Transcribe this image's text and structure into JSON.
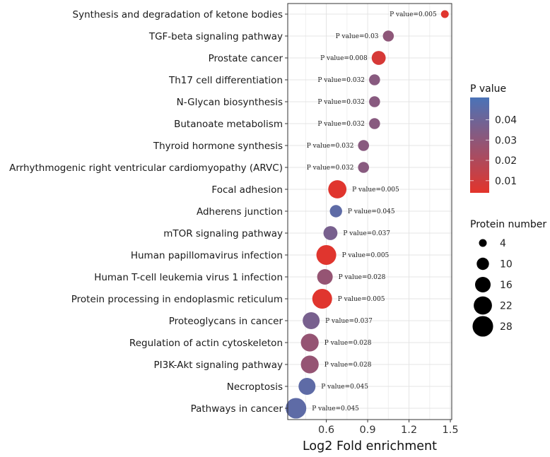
{
  "chart_data": {
    "type": "scatter",
    "title": "",
    "xlabel": "Log2 Fold enrichment",
    "ylabel": "",
    "xlim": [
      0.32,
      1.51
    ],
    "xticks": [
      0.6,
      0.9,
      1.2,
      1.5
    ],
    "xtick_labels": [
      "0.6",
      "0.9",
      "1.2",
      "1.5"
    ],
    "grid": true,
    "points": [
      {
        "pathway": "Synthesis and degradation of ketone bodies",
        "x": 1.46,
        "p": 0.005,
        "p_label": "P value=0.005",
        "proteins": 4
      },
      {
        "pathway": "TGF-beta signaling pathway",
        "x": 1.05,
        "p": 0.03,
        "p_label": "P value=0.03",
        "proteins": 8
      },
      {
        "pathway": "Prostate cancer",
        "x": 0.98,
        "p": 0.008,
        "p_label": "P value=0.008",
        "proteins": 13
      },
      {
        "pathway": "Th17 cell differentiation",
        "x": 0.95,
        "p": 0.032,
        "p_label": "P value=0.032",
        "proteins": 8
      },
      {
        "pathway": "N-Glycan biosynthesis",
        "x": 0.95,
        "p": 0.032,
        "p_label": "P value=0.032",
        "proteins": 8
      },
      {
        "pathway": "Butanoate metabolism",
        "x": 0.95,
        "p": 0.032,
        "p_label": "P value=0.032",
        "proteins": 8
      },
      {
        "pathway": "Thyroid hormone synthesis",
        "x": 0.87,
        "p": 0.032,
        "p_label": "P value=0.032",
        "proteins": 8
      },
      {
        "pathway": "Arrhythmogenic right ventricular cardiomyopathy (ARVC)",
        "x": 0.87,
        "p": 0.032,
        "p_label": "P value=0.032",
        "proteins": 8
      },
      {
        "pathway": "Focal adhesion",
        "x": 0.68,
        "p": 0.005,
        "p_label": "P value=0.005",
        "proteins": 22
      },
      {
        "pathway": "Adherens junction",
        "x": 0.67,
        "p": 0.045,
        "p_label": "P value=0.045",
        "proteins": 10
      },
      {
        "pathway": "mTOR signaling pathway",
        "x": 0.63,
        "p": 0.037,
        "p_label": "P value=0.037",
        "proteins": 13
      },
      {
        "pathway": "Human papillomavirus infection",
        "x": 0.6,
        "p": 0.005,
        "p_label": "P value=0.005",
        "proteins": 26
      },
      {
        "pathway": "Human T-cell leukemia virus 1 infection",
        "x": 0.59,
        "p": 0.028,
        "p_label": "P value=0.028",
        "proteins": 16
      },
      {
        "pathway": "Protein processing in endoplasmic reticulum",
        "x": 0.57,
        "p": 0.005,
        "p_label": "P value=0.005",
        "proteins": 26
      },
      {
        "pathway": "Proteoglycans in cancer",
        "x": 0.49,
        "p": 0.037,
        "p_label": "P value=0.037",
        "proteins": 19
      },
      {
        "pathway": "Regulation of actin cytoskeleton",
        "x": 0.48,
        "p": 0.028,
        "p_label": "P value=0.028",
        "proteins": 21
      },
      {
        "pathway": "PI3K-Akt signaling pathway",
        "x": 0.48,
        "p": 0.028,
        "p_label": "P value=0.028",
        "proteins": 21
      },
      {
        "pathway": "Necroptosis",
        "x": 0.46,
        "p": 0.045,
        "p_label": "P value=0.045",
        "proteins": 19
      },
      {
        "pathway": "Pathways in cancer",
        "x": 0.38,
        "p": 0.045,
        "p_label": "P value=0.045",
        "proteins": 28
      }
    ],
    "color_legend": {
      "title": "P value",
      "range": [
        0.004,
        0.051
      ],
      "ticks": [
        0.04,
        0.03,
        0.02,
        0.01
      ],
      "tick_labels": [
        "0.04",
        "0.03",
        "0.02",
        "0.01"
      ],
      "low_color": "#e3342b",
      "high_color": "#4a73b8"
    },
    "size_legend": {
      "title": "Protein number",
      "values": [
        4,
        10,
        16,
        22,
        28
      ],
      "labels": [
        "4",
        "10",
        "16",
        "22",
        "28"
      ]
    }
  }
}
